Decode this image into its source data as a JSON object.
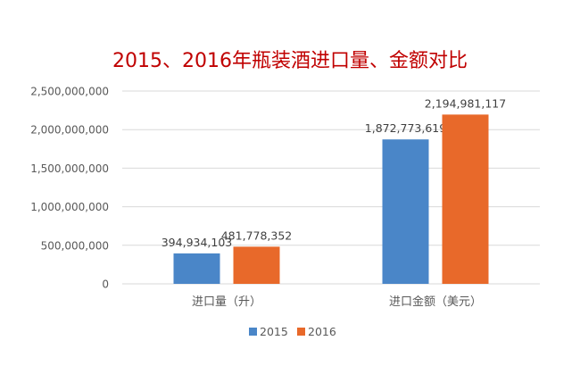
{
  "chart_data": {
    "type": "bar",
    "title": "2015、2016年瓶装酒进口量、金额对比",
    "categories": [
      "进口量（升）",
      "进口金额（美元）"
    ],
    "series": [
      {
        "name": "2015",
        "color": "#4a86c8",
        "values": [
          394934103,
          1872773619
        ],
        "labels": [
          "394,934,103",
          "1,872,773,619"
        ]
      },
      {
        "name": "2016",
        "color": "#e8692a",
        "values": [
          481778352,
          2194981117
        ],
        "labels": [
          "481,778,352",
          "2,194,981,117"
        ]
      }
    ],
    "yticks": [
      0,
      500000000,
      1000000000,
      1500000000,
      2000000000,
      2500000000
    ],
    "ytick_labels": [
      "0",
      "500,000,000",
      "1,000,000,000",
      "1,500,000,000",
      "2,000,000,000",
      "2,500,000,000"
    ],
    "ylim": [
      0,
      2500000000
    ],
    "grid": true,
    "legend": "bottom",
    "title_color": "#c00000"
  }
}
